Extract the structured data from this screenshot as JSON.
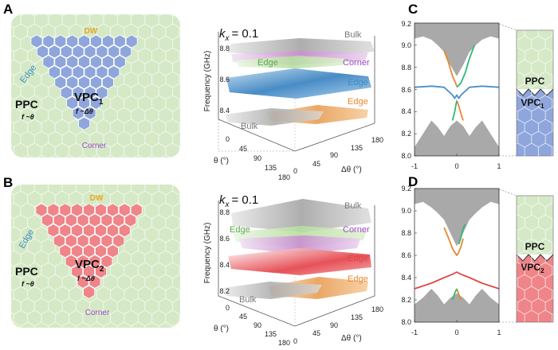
{
  "panels": {
    "A": {
      "label": "A",
      "dw": "DW",
      "edge": "Edge",
      "ppc": "PPC",
      "ppc_sub": "f ~θ",
      "vpc": "VPC",
      "vpc_index": "1",
      "vpc_sub": "f ~Δθ",
      "corner": "Corner"
    },
    "B": {
      "label": "B",
      "dw": "DW",
      "edge": "Edge",
      "ppc": "PPC",
      "ppc_sub": "f ~θ",
      "vpc": "VPC",
      "vpc_index": "2",
      "vpc_sub": "f ~Δθ",
      "corner": "Corner"
    },
    "C": {
      "label": "C"
    },
    "D": {
      "label": "D"
    }
  },
  "surface_top": {
    "kx_var": "k",
    "kx_sub": "x",
    "kx_value": "= 0.1",
    "zlabel": "Frequency (GHz)",
    "zticks": [
      "8.4",
      "8.6",
      "8.8"
    ],
    "theta_label": "θ (°)",
    "theta_ticks": [
      "0",
      "45",
      "90",
      "135",
      "180"
    ],
    "dtheta_label": "Δθ (°)",
    "dtheta_ticks": [
      "0",
      "45",
      "90",
      "135",
      "180"
    ],
    "labels": {
      "bulk_top": "Bulk",
      "edge1": "Edge",
      "corner": "Corner",
      "edge2": "Edge",
      "edge3": "Edge",
      "bulk_bottom": "Bulk"
    }
  },
  "surface_bottom": {
    "kx_var": "k",
    "kx_sub": "x",
    "kx_value": "= 0.1",
    "zlabel": "Frequency (GHz)",
    "zticks": [
      "8.2",
      "8.4",
      "8.6",
      "8.8"
    ],
    "theta_label": "θ (°)",
    "theta_ticks": [
      "0",
      "45",
      "90",
      "135",
      "180"
    ],
    "dtheta_label": "Δθ (°)",
    "dtheta_ticks": [
      "0",
      "45",
      "90",
      "135",
      "180"
    ],
    "labels": {
      "bulk_top": "Bulk",
      "edge1": "Edge",
      "corner": "Corner",
      "edge2": "Edge",
      "edge3": "Edge",
      "bulk_bottom": "Bulk"
    }
  },
  "band_C": {
    "yticks": [
      "8.0",
      "8.2",
      "8.4",
      "8.6",
      "8.8",
      "9.0",
      "9.2"
    ],
    "xticks": [
      "-1",
      "0",
      "1"
    ],
    "top_label": "PPC",
    "bottom_label": "VPC",
    "bottom_index": "1"
  },
  "band_D": {
    "yticks": [
      "8.0",
      "8.2",
      "8.4",
      "8.6",
      "8.8",
      "9.0",
      "9.2"
    ],
    "xticks": [
      "-1",
      "0",
      "1"
    ],
    "top_label": "PPC",
    "bottom_label": "VPC",
    "bottom_index": "2"
  },
  "chart_data": [
    {
      "type": "line",
      "title": "C",
      "xlabel": "",
      "ylabel": "",
      "xlim": [
        -1,
        1
      ],
      "ylim": [
        8.0,
        9.2
      ],
      "series": [
        {
          "name": "interface mode (blue)",
          "color": "#4a90c8",
          "x": [
            -1,
            -0.6,
            -0.3,
            -0.1,
            -0.05,
            0,
            0.05,
            0.1,
            0.3,
            0.6,
            1
          ],
          "y": [
            8.62,
            8.63,
            8.62,
            8.55,
            8.52,
            8.55,
            8.52,
            8.55,
            8.62,
            8.63,
            8.62
          ]
        },
        {
          "name": "upper orange",
          "color": "#e8882c",
          "x": [
            -0.3,
            -0.2,
            -0.1,
            -0.03,
            0
          ],
          "y": [
            8.95,
            8.85,
            8.72,
            8.66,
            8.63
          ]
        },
        {
          "name": "upper green",
          "color": "#2fb87a",
          "x": [
            0,
            0.1,
            0.2,
            0.3,
            0.42
          ],
          "y": [
            8.62,
            8.66,
            8.75,
            8.88,
            9.0
          ]
        },
        {
          "name": "lower orange",
          "color": "#e8882c",
          "x": [
            0,
            0.05,
            0.1,
            0.15
          ],
          "y": [
            8.5,
            8.45,
            8.38,
            8.32
          ]
        },
        {
          "name": "lower green",
          "color": "#2fb87a",
          "x": [
            -0.1,
            -0.05,
            0
          ],
          "y": [
            8.32,
            8.4,
            8.5
          ]
        }
      ]
    },
    {
      "type": "line",
      "title": "D",
      "xlabel": "",
      "ylabel": "",
      "xlim": [
        -1,
        1
      ],
      "ylim": [
        8.0,
        9.2
      ],
      "series": [
        {
          "name": "interface mode (red)",
          "color": "#e04848",
          "x": [
            -1,
            -0.6,
            -0.3,
            -0.1,
            0,
            0.1,
            0.3,
            0.6,
            1
          ],
          "y": [
            8.3,
            8.35,
            8.4,
            8.43,
            8.45,
            8.43,
            8.4,
            8.35,
            8.3
          ]
        },
        {
          "name": "upper orange",
          "color": "#e8882c",
          "x": [
            -0.3,
            -0.2,
            -0.1,
            0,
            0.05,
            0.1,
            0.15
          ],
          "y": [
            8.85,
            8.76,
            8.66,
            8.6,
            8.63,
            8.68,
            8.75
          ]
        },
        {
          "name": "upper green",
          "color": "#2fb87a",
          "x": [
            0.05,
            0.1,
            0.15,
            0.2
          ],
          "y": [
            8.7,
            8.76,
            8.84,
            8.88
          ]
        },
        {
          "name": "lower orange",
          "color": "#e8882c",
          "x": [
            0,
            0.05,
            0.1
          ],
          "y": [
            8.3,
            8.25,
            8.2
          ]
        },
        {
          "name": "lower green",
          "color": "#2fb87a",
          "x": [
            -0.1,
            -0.05,
            0
          ],
          "y": [
            8.2,
            8.26,
            8.3
          ]
        }
      ]
    }
  ],
  "colors": {
    "ppc_bg": "#d5e9c7",
    "vpc1": "#8ea6dc",
    "vpc2": "#ef8489",
    "bulk_gray": "#a9a9a9",
    "orange": "#e8882c",
    "green": "#2fb87a",
    "blue": "#4a90c8",
    "red": "#e04848",
    "dw": "#e8a81c",
    "edge_txt": "#3b8fbf",
    "corner_txt": "#9a4bc4"
  }
}
